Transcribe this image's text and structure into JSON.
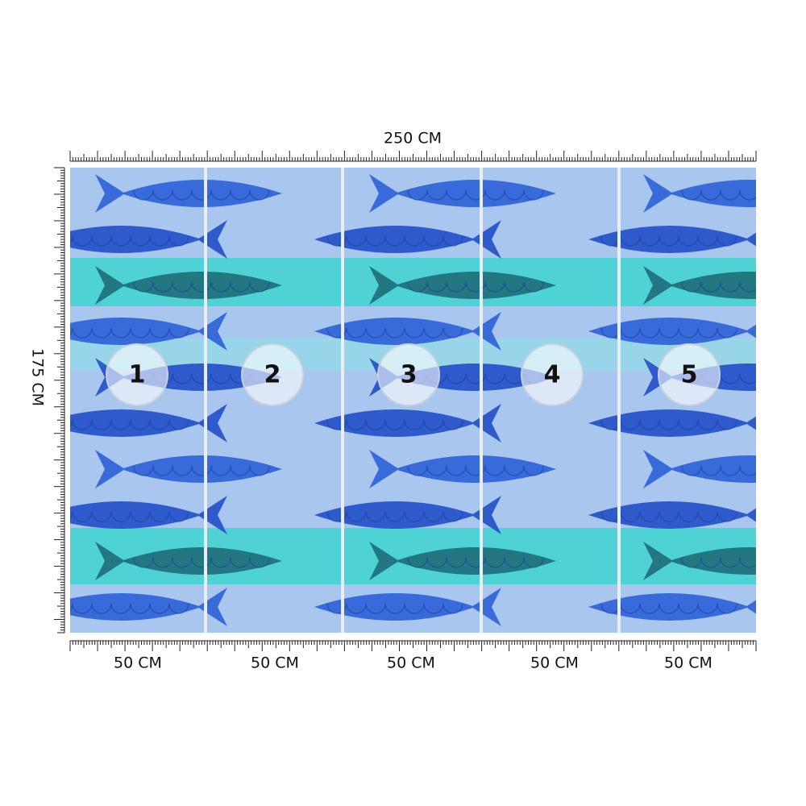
{
  "dimensions": {
    "width": "250 CM",
    "height": "175 CM"
  },
  "panels": [
    {
      "number": "1",
      "width": "50 CM"
    },
    {
      "number": "2",
      "width": "50 CM"
    },
    {
      "number": "3",
      "width": "50 CM"
    },
    {
      "number": "4",
      "width": "50 CM"
    },
    {
      "number": "5",
      "width": "50 CM"
    }
  ]
}
